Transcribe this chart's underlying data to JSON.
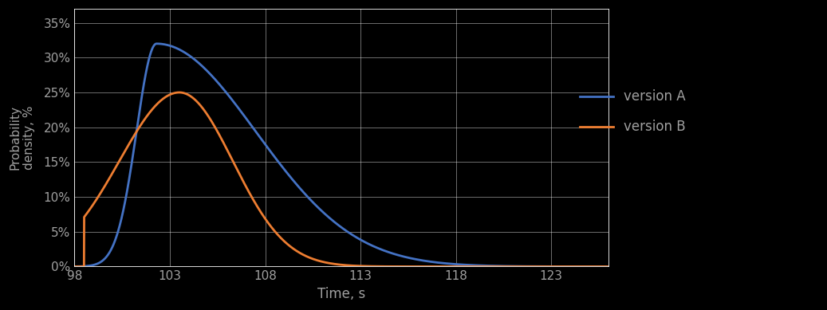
{
  "xlabel": "Time, s",
  "ylabel": "Probability\ndensity, %",
  "xlim": [
    98,
    126
  ],
  "ylim": [
    0,
    0.37
  ],
  "xticks": [
    98,
    103,
    108,
    113,
    118,
    123
  ],
  "xtick_labels": [
    "98",
    "103",
    "108",
    "113",
    "118",
    "123"
  ],
  "yticks": [
    0.0,
    0.05,
    0.1,
    0.15,
    0.2,
    0.25,
    0.3,
    0.35
  ],
  "ytick_labels": [
    "0%",
    "5%",
    "10%",
    "15%",
    "20%",
    "25%",
    "30%",
    "35%"
  ],
  "color_A": "#4472C4",
  "color_B": "#ED7D31",
  "legend_A": "version A",
  "legend_B": "version B",
  "background_color": "#000000",
  "grid_color": "#FFFFFF",
  "text_color": "#A0A0A0",
  "xlabel_color": "#A0A0A0",
  "line_width": 2.0
}
